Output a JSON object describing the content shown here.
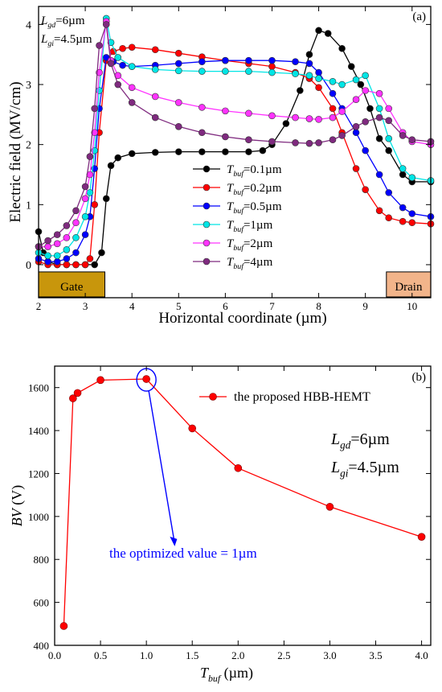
{
  "chart_data": [
    {
      "type": "line",
      "panel_label": "(a)",
      "xlabel": "Horizontal coordinate (µm)",
      "ylabel": "Electric field (MV/cm)",
      "xlim": [
        2,
        10.4
      ],
      "ylim": [
        -0.55,
        4.3
      ],
      "xticks": [
        2,
        3,
        4,
        5,
        6,
        7,
        8,
        9,
        10
      ],
      "yticks": [
        0,
        1,
        2,
        3,
        4
      ],
      "grid": false,
      "legend_position": "center-right",
      "annotations": {
        "lgd": {
          "sym": "L",
          "sub": "gd",
          "rest": "=6µm"
        },
        "lgi": {
          "sym": "L",
          "sub": "gi",
          "rest": "=4.5µm"
        }
      },
      "regions": [
        {
          "label": "Gate",
          "x": [
            2,
            3.42
          ],
          "color": "#c8960c"
        },
        {
          "label": "Drain",
          "x": [
            9.45,
            10.4
          ],
          "color": "#f2b48a"
        }
      ],
      "series": [
        {
          "name": "T_buf=0.1µm",
          "legend": {
            "sym": "T",
            "sub": "buf",
            "rest": "=0.1µm"
          },
          "color": "#000000",
          "x": [
            2,
            2.1,
            2.2,
            2.4,
            2.6,
            2.8,
            3.0,
            3.2,
            3.35,
            3.45,
            3.55,
            3.7,
            4.0,
            4.5,
            5.0,
            5.5,
            6.0,
            6.5,
            6.8,
            7.0,
            7.3,
            7.6,
            7.8,
            8.0,
            8.2,
            8.5,
            8.7,
            8.9,
            9.1,
            9.3,
            9.5,
            9.8,
            10.0,
            10.4
          ],
          "y": [
            0.55,
            0.2,
            0.05,
            0.0,
            0.0,
            0.0,
            0.0,
            0.0,
            0.2,
            1.1,
            1.65,
            1.78,
            1.85,
            1.87,
            1.88,
            1.88,
            1.88,
            1.88,
            1.9,
            2.0,
            2.35,
            2.9,
            3.5,
            3.9,
            3.85,
            3.6,
            3.3,
            3.0,
            2.6,
            2.1,
            1.9,
            1.5,
            1.38,
            1.38
          ]
        },
        {
          "name": "T_buf=0.2µm",
          "legend": {
            "sym": "T",
            "sub": "buf",
            "rest": "=0.2µm"
          },
          "color": "#ff0000",
          "x": [
            2,
            2.2,
            2.4,
            2.6,
            2.8,
            3.0,
            3.1,
            3.2,
            3.3,
            3.45,
            3.6,
            3.8,
            4.0,
            4.5,
            5.0,
            5.5,
            6.0,
            6.5,
            7.0,
            7.5,
            7.8,
            8.0,
            8.3,
            8.5,
            8.8,
            9.0,
            9.3,
            9.5,
            9.8,
            10.0,
            10.4
          ],
          "y": [
            0.05,
            0.0,
            0.0,
            0.0,
            0.0,
            0.0,
            0.1,
            1.0,
            2.2,
            3.4,
            3.55,
            3.6,
            3.62,
            3.58,
            3.52,
            3.46,
            3.4,
            3.35,
            3.3,
            3.2,
            3.1,
            2.95,
            2.6,
            2.2,
            1.6,
            1.25,
            0.9,
            0.78,
            0.72,
            0.7,
            0.68
          ]
        },
        {
          "name": "T_buf=0.5µm",
          "legend": {
            "sym": "T",
            "sub": "buf",
            "rest": "=0.5µm"
          },
          "color": "#0000ff",
          "x": [
            2,
            2.2,
            2.4,
            2.6,
            2.8,
            3.0,
            3.1,
            3.2,
            3.3,
            3.45,
            3.6,
            3.8,
            4.0,
            4.5,
            5.0,
            5.5,
            6.0,
            6.5,
            7.0,
            7.5,
            7.8,
            8.0,
            8.3,
            8.5,
            8.8,
            9.0,
            9.3,
            9.5,
            9.8,
            10.0,
            10.4
          ],
          "y": [
            0.1,
            0.05,
            0.05,
            0.1,
            0.2,
            0.5,
            0.8,
            1.6,
            2.6,
            3.45,
            3.38,
            3.32,
            3.3,
            3.32,
            3.35,
            3.38,
            3.4,
            3.4,
            3.4,
            3.38,
            3.35,
            3.2,
            2.85,
            2.6,
            2.2,
            1.9,
            1.5,
            1.2,
            0.95,
            0.85,
            0.8
          ]
        },
        {
          "name": "T_buf=1µm",
          "legend": {
            "sym": "T",
            "sub": "buf",
            "rest": "=1µm"
          },
          "color": "#00e5e5",
          "x": [
            2,
            2.2,
            2.4,
            2.6,
            2.8,
            3.0,
            3.1,
            3.2,
            3.3,
            3.45,
            3.55,
            3.7,
            4.0,
            4.5,
            5.0,
            5.5,
            6.0,
            6.5,
            7.0,
            7.5,
            7.8,
            8.0,
            8.3,
            8.5,
            8.8,
            9.0,
            9.3,
            9.5,
            9.8,
            10.0,
            10.4
          ],
          "y": [
            0.2,
            0.15,
            0.15,
            0.25,
            0.45,
            0.8,
            1.2,
            1.9,
            2.9,
            4.1,
            3.7,
            3.45,
            3.3,
            3.25,
            3.23,
            3.22,
            3.22,
            3.22,
            3.2,
            3.18,
            3.15,
            3.1,
            3.05,
            3.0,
            3.08,
            3.15,
            2.6,
            2.1,
            1.6,
            1.45,
            1.4
          ]
        },
        {
          "name": "T_buf=2µm",
          "legend": {
            "sym": "T",
            "sub": "buf",
            "rest": "=2µm"
          },
          "color": "#ff33ff",
          "x": [
            2,
            2.2,
            2.4,
            2.6,
            2.8,
            3.0,
            3.1,
            3.2,
            3.3,
            3.45,
            3.55,
            3.7,
            4.0,
            4.5,
            5.0,
            5.5,
            6.0,
            6.5,
            7.0,
            7.5,
            7.8,
            8.0,
            8.3,
            8.5,
            8.8,
            9.0,
            9.3,
            9.5,
            9.8,
            10.0,
            10.4
          ],
          "y": [
            0.3,
            0.3,
            0.35,
            0.45,
            0.7,
            1.1,
            1.5,
            2.2,
            3.2,
            4.05,
            3.4,
            3.15,
            2.95,
            2.8,
            2.7,
            2.62,
            2.56,
            2.52,
            2.48,
            2.45,
            2.43,
            2.42,
            2.45,
            2.55,
            2.75,
            2.9,
            2.85,
            2.6,
            2.2,
            2.05,
            2.0
          ]
        },
        {
          "name": "T_buf=4µm",
          "legend": {
            "sym": "T",
            "sub": "buf",
            "rest": "=4µm"
          },
          "color": "#7f2a7f",
          "x": [
            2,
            2.2,
            2.4,
            2.6,
            2.8,
            3.0,
            3.1,
            3.2,
            3.3,
            3.45,
            3.55,
            3.7,
            4.0,
            4.5,
            5.0,
            5.5,
            6.0,
            6.5,
            7.0,
            7.5,
            7.8,
            8.0,
            8.3,
            8.5,
            8.8,
            9.0,
            9.3,
            9.5,
            9.8,
            10.0,
            10.4
          ],
          "y": [
            0.3,
            0.4,
            0.5,
            0.65,
            0.9,
            1.3,
            1.8,
            2.6,
            3.65,
            4.0,
            3.35,
            3.0,
            2.7,
            2.45,
            2.3,
            2.2,
            2.13,
            2.08,
            2.05,
            2.03,
            2.02,
            2.03,
            2.08,
            2.15,
            2.3,
            2.38,
            2.45,
            2.4,
            2.15,
            2.08,
            2.05
          ]
        }
      ]
    },
    {
      "type": "line",
      "panel_label": "(b)",
      "xlabel": {
        "sym": "T",
        "sub": "buf",
        "rest": " (µm)"
      },
      "ylabel": {
        "sym": "BV",
        "rest": " (V)"
      },
      "xlim": [
        0,
        4.1
      ],
      "ylim": [
        400,
        1700
      ],
      "xticks": [
        0.0,
        0.5,
        1.0,
        1.5,
        2.0,
        2.5,
        3.0,
        3.5,
        4.0
      ],
      "yticks": [
        400,
        600,
        800,
        1000,
        1200,
        1400,
        1600
      ],
      "grid": false,
      "legend_position": "top-right",
      "annotations": {
        "lgd": {
          "sym": "L",
          "sub": "gd",
          "rest": "=6µm"
        },
        "lgi": {
          "sym": "L",
          "sub": "gi",
          "rest": "=4.5µm"
        },
        "optimized": "the optimized value = 1µm"
      },
      "series": [
        {
          "name": "the proposed HBB-HEMT",
          "color": "#ff0000",
          "x": [
            0.1,
            0.2,
            0.25,
            0.5,
            1.0,
            1.5,
            2.0,
            3.0,
            4.0
          ],
          "y": [
            490,
            1550,
            1575,
            1635,
            1640,
            1410,
            1225,
            1045,
            905
          ]
        }
      ]
    }
  ]
}
